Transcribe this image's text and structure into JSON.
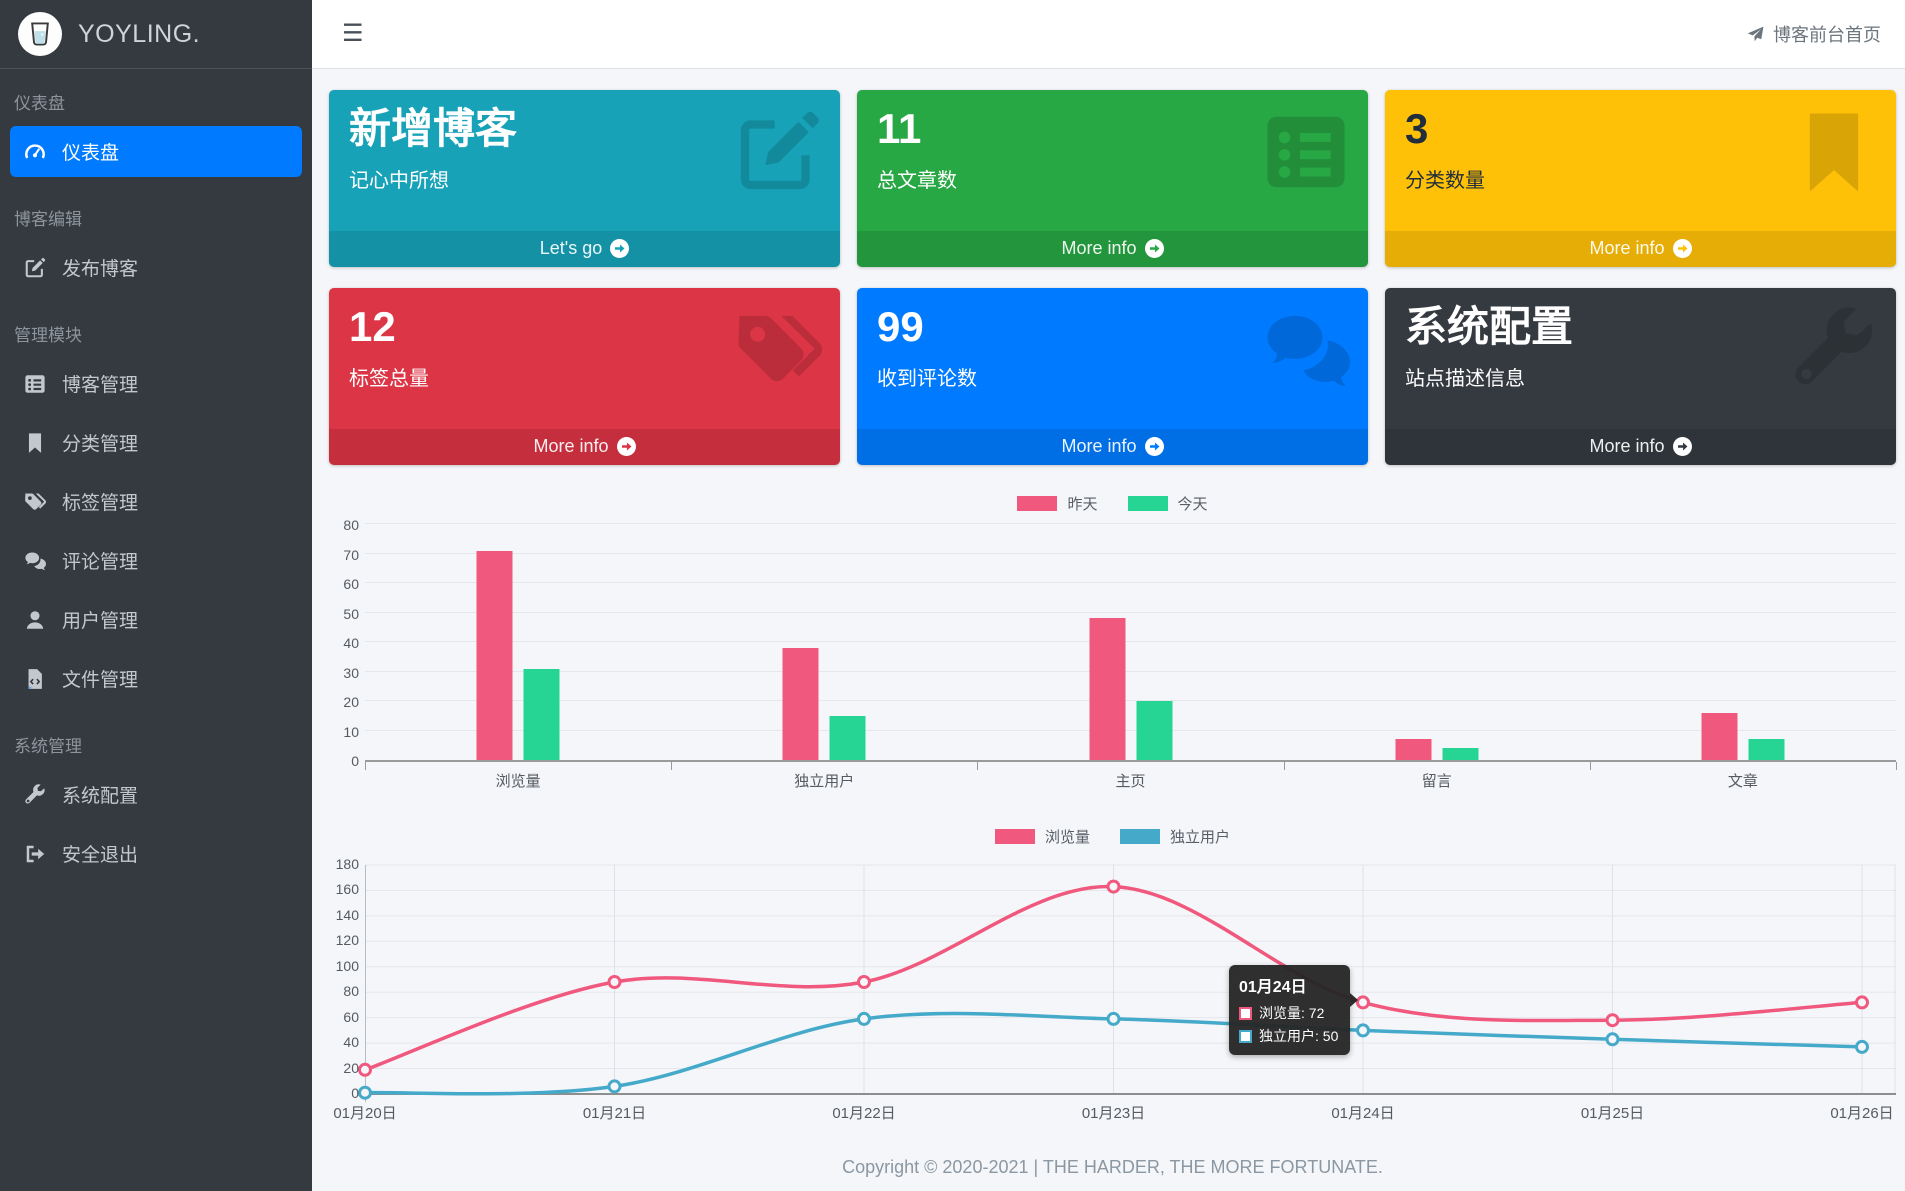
{
  "app": {
    "brand": "YOYLING.",
    "hamburger": "☰",
    "front_link": "博客前台首页",
    "copyright": "Copyright © 2020-2021 | THE HARDER, THE MORE FORTUNATE."
  },
  "sidebar": {
    "sections": [
      {
        "header": "仪表盘",
        "items": [
          {
            "id": "dashboard",
            "label": "仪表盘",
            "icon": "tachometer",
            "active": true
          }
        ]
      },
      {
        "header": "博客编辑",
        "items": [
          {
            "id": "publish-blog",
            "label": "发布博客",
            "icon": "edit",
            "active": false
          }
        ]
      },
      {
        "header": "管理模块",
        "items": [
          {
            "id": "blog-manage",
            "label": "博客管理",
            "icon": "list",
            "active": false
          },
          {
            "id": "category-manage",
            "label": "分类管理",
            "icon": "bookmark",
            "active": false
          },
          {
            "id": "tag-manage",
            "label": "标签管理",
            "icon": "tags",
            "active": false
          },
          {
            "id": "comment-manage",
            "label": "评论管理",
            "icon": "comments",
            "active": false
          },
          {
            "id": "user-manage",
            "label": "用户管理",
            "icon": "user",
            "active": false
          },
          {
            "id": "file-manage",
            "label": "文件管理",
            "icon": "file-code",
            "active": false
          }
        ]
      },
      {
        "header": "系统管理",
        "items": [
          {
            "id": "system-config",
            "label": "系统配置",
            "icon": "wrench",
            "active": false
          },
          {
            "id": "logout",
            "label": "安全退出",
            "icon": "sign-out",
            "active": false
          }
        ]
      }
    ]
  },
  "info_boxes": [
    {
      "id": "new-blog",
      "title": "新增博客",
      "subtitle": "记心中所想",
      "footer": "Let's go",
      "color": "#17a2b8",
      "icon": "edit",
      "text": "light"
    },
    {
      "id": "total-articles",
      "title": "11",
      "subtitle": "总文章数",
      "footer": "More info",
      "color": "#28a745",
      "icon": "list",
      "text": "light"
    },
    {
      "id": "category-count",
      "title": "3",
      "subtitle": "分类数量",
      "footer": "More info",
      "color": "#ffc107",
      "icon": "bookmark",
      "text": "dark"
    },
    {
      "id": "tag-count",
      "title": "12",
      "subtitle": "标签总量",
      "footer": "More info",
      "color": "#dc3545",
      "icon": "tags",
      "text": "light"
    },
    {
      "id": "comment-count",
      "title": "99",
      "subtitle": "收到评论数",
      "footer": "More info",
      "color": "#007bff",
      "icon": "comments",
      "text": "light"
    },
    {
      "id": "system-config-box",
      "title": "系统配置",
      "subtitle": "站点描述信息",
      "footer": "More info",
      "color": "#343a40",
      "icon": "wrench",
      "text": "light"
    }
  ],
  "chart_data": [
    {
      "type": "bar",
      "title": "",
      "categories": [
        "浏览量",
        "独立用户",
        "主页",
        "留言",
        "文章"
      ],
      "series": [
        {
          "name": "昨天",
          "color": "#f0587d",
          "values": [
            71,
            38,
            48,
            7,
            16
          ]
        },
        {
          "name": "今天",
          "color": "#26d594",
          "values": [
            31,
            15,
            20,
            4,
            7
          ]
        }
      ],
      "ylim": [
        0,
        80
      ],
      "ytick": 10,
      "grid": true,
      "legend_position": "top"
    },
    {
      "type": "line",
      "title": "",
      "x": [
        "01月20日",
        "01月21日",
        "01月22日",
        "01月23日",
        "01月24日",
        "01月25日",
        "01月26日"
      ],
      "series": [
        {
          "name": "浏览量",
          "color": "#f0587d",
          "values": [
            19,
            88,
            88,
            163,
            72,
            58,
            72
          ]
        },
        {
          "name": "独立用户",
          "color": "#45a9c9",
          "values": [
            1,
            6,
            59,
            59,
            50,
            43,
            37
          ]
        }
      ],
      "ylim": [
        0,
        180
      ],
      "ytick": 20,
      "grid": true,
      "legend_position": "top",
      "smooth": true,
      "tooltip": {
        "point_index": 4,
        "title": "01月24日",
        "rows": [
          {
            "label": "浏览量",
            "value": 72,
            "color": "#f0587d"
          },
          {
            "label": "独立用户",
            "value": 50,
            "color": "#45a9c9"
          }
        ]
      }
    }
  ]
}
